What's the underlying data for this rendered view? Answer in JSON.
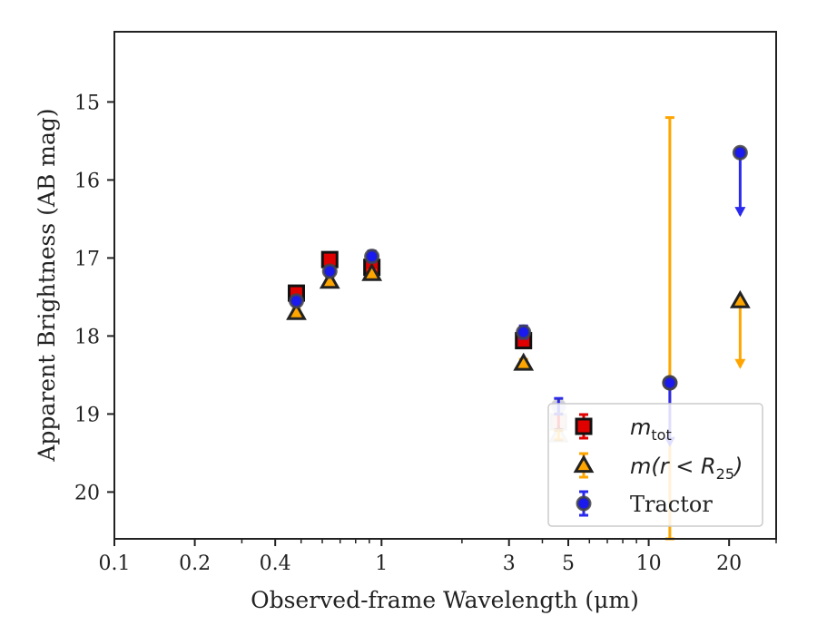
{
  "chart_data": {
    "type": "scatter",
    "xlabel": "Observed-frame Wavelength (μm)",
    "ylabel": "Apparent Brightness (AB mag)",
    "xscale": "log",
    "xlim": [
      0.1,
      30
    ],
    "ylim": [
      20.6,
      14.1
    ],
    "y_inverted": true,
    "x_ticks": [
      {
        "value": 0.1,
        "label": "0.1"
      },
      {
        "value": 0.2,
        "label": "0.2"
      },
      {
        "value": 0.4,
        "label": "0.4"
      },
      {
        "value": 1,
        "label": "1"
      },
      {
        "value": 3,
        "label": "3"
      },
      {
        "value": 5,
        "label": "5"
      },
      {
        "value": 10,
        "label": "10"
      },
      {
        "value": 20,
        "label": "20"
      }
    ],
    "y_ticks": [
      {
        "value": 15,
        "label": "15"
      },
      {
        "value": 16,
        "label": "16"
      },
      {
        "value": 17,
        "label": "17"
      },
      {
        "value": 18,
        "label": "18"
      },
      {
        "value": 19,
        "label": "19"
      },
      {
        "value": 20,
        "label": "20"
      }
    ],
    "grid": false,
    "legend": {
      "placement": "lower-right",
      "entries": [
        {
          "prefix": "m",
          "sub": "tot",
          "suffix": ""
        },
        {
          "prefix": "m(r < R",
          "sub": "25",
          "suffix": ")"
        },
        {
          "prefix": "Tractor",
          "sub": "",
          "suffix": ""
        }
      ]
    },
    "series": [
      {
        "marker": "square",
        "color": "#e00000",
        "edge": "#111111",
        "errcolor": "#e00000",
        "points": [
          {
            "x": 0.48,
            "y": 17.45,
            "err": 0.06
          },
          {
            "x": 0.64,
            "y": 17.02,
            "err": 0.06
          },
          {
            "x": 0.92,
            "y": 17.12,
            "err": 0.06
          },
          {
            "x": 3.4,
            "y": 18.06,
            "err": 0.07
          },
          {
            "x": 4.6,
            "y": 19.1,
            "err": 0.1
          }
        ]
      },
      {
        "marker": "triangle",
        "color": "#ffa500",
        "edge": "#222222",
        "errcolor": "#ffa500",
        "points": [
          {
            "x": 0.48,
            "y": 17.7,
            "err": 0.04
          },
          {
            "x": 0.64,
            "y": 17.3,
            "err": 0.04
          },
          {
            "x": 0.92,
            "y": 17.2,
            "err": 0.04
          },
          {
            "x": 3.4,
            "y": 18.35,
            "err": 0.05
          },
          {
            "x": 4.6,
            "y": 19.27,
            "err": 0.06
          },
          {
            "x": 12,
            "y": 18.6,
            "errlow": 15.2,
            "errhigh": 22
          }
        ],
        "upper_limits": [
          {
            "x": 22,
            "y": 17.55,
            "arrow_to": 18.4
          }
        ]
      },
      {
        "marker": "circle",
        "color": "#1a1aee",
        "edge": "#444444",
        "errcolor": "#2a2aee",
        "points": [
          {
            "x": 0.48,
            "y": 17.55,
            "err": 0.06
          },
          {
            "x": 0.64,
            "y": 17.17,
            "err": 0.06
          },
          {
            "x": 0.92,
            "y": 16.98,
            "err": 0.07
          },
          {
            "x": 3.4,
            "y": 17.95,
            "err": 0.08
          },
          {
            "x": 4.6,
            "y": 18.9,
            "err": 0.1
          },
          {
            "x": 12,
            "y": 18.6,
            "err": 0
          }
        ],
        "upper_limits": [
          {
            "x": 12,
            "y": 18.6,
            "arrow_to": 19.4
          },
          {
            "x": 22,
            "y": 15.65,
            "arrow_to": 16.45
          }
        ]
      }
    ]
  }
}
